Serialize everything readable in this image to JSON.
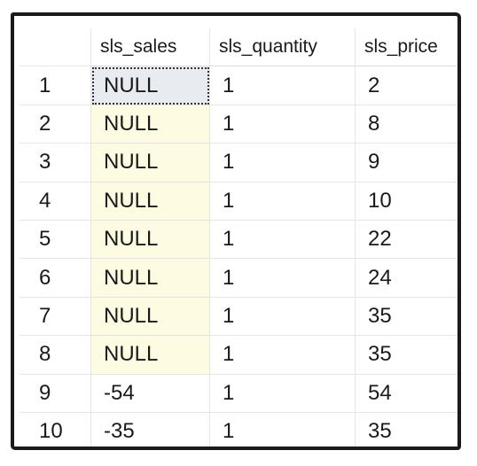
{
  "grid": {
    "columns": [
      "sls_sales",
      "sls_quantity",
      "sls_price"
    ],
    "rows": [
      {
        "row": "1",
        "sls_sales": "NULL",
        "sls_quantity": "1",
        "sls_price": "2"
      },
      {
        "row": "2",
        "sls_sales": "NULL",
        "sls_quantity": "1",
        "sls_price": "8"
      },
      {
        "row": "3",
        "sls_sales": "NULL",
        "sls_quantity": "1",
        "sls_price": "9"
      },
      {
        "row": "4",
        "sls_sales": "NULL",
        "sls_quantity": "1",
        "sls_price": "10"
      },
      {
        "row": "5",
        "sls_sales": "NULL",
        "sls_quantity": "1",
        "sls_price": "22"
      },
      {
        "row": "6",
        "sls_sales": "NULL",
        "sls_quantity": "1",
        "sls_price": "24"
      },
      {
        "row": "7",
        "sls_sales": "NULL",
        "sls_quantity": "1",
        "sls_price": "35"
      },
      {
        "row": "8",
        "sls_sales": "NULL",
        "sls_quantity": "1",
        "sls_price": "35"
      },
      {
        "row": "9",
        "sls_sales": "-54",
        "sls_quantity": "1",
        "sls_price": "54"
      },
      {
        "row": "10",
        "sls_sales": "-35",
        "sls_quantity": "1",
        "sls_price": "35"
      }
    ]
  },
  "colors": {
    "null_cell_bg": "#fefbe3",
    "selected_cell_bg": "#e8ecf0",
    "frame": "#1a1a1a"
  }
}
